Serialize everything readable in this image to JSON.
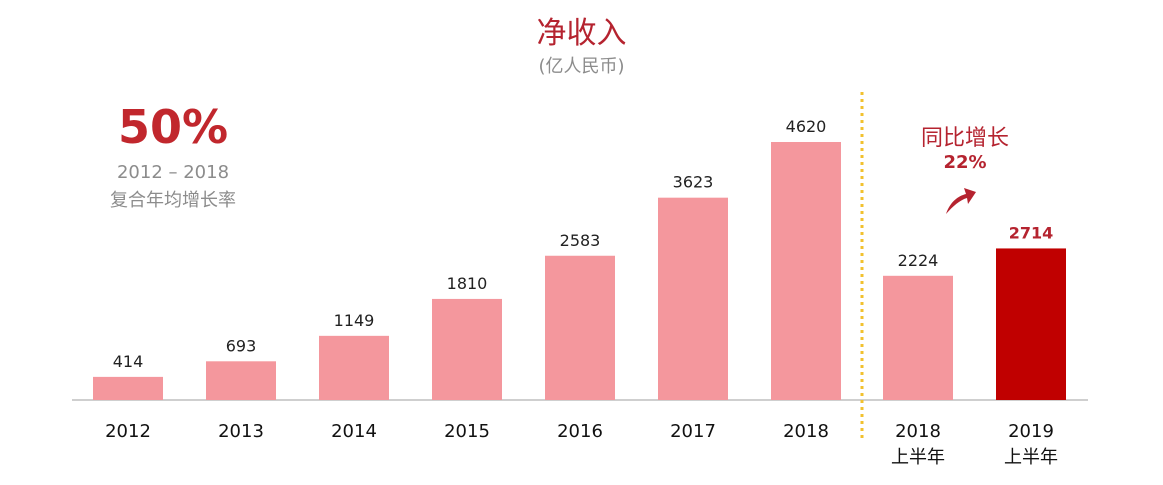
{
  "title": "净收入",
  "subtitle": "(亿人民币)",
  "cagr": {
    "value": "50%",
    "period": "2012 – 2018",
    "label": "复合年均增长率"
  },
  "yoy": {
    "label": "同比增长",
    "value": "22%"
  },
  "colors": {
    "bar": "#f4979d",
    "highlight": "#c00000",
    "title": "#b5232f",
    "divider": "#f2c12e",
    "axis": "#bfbfbf"
  },
  "chart_data": {
    "type": "bar",
    "title": "净收入",
    "subtitle": "(亿人民币)",
    "categories": [
      "2012",
      "2013",
      "2014",
      "2015",
      "2016",
      "2017",
      "2018",
      "2018\n上半年",
      "2019\n上半年"
    ],
    "category_lines": [
      [
        "2012"
      ],
      [
        "2013"
      ],
      [
        "2014"
      ],
      [
        "2015"
      ],
      [
        "2016"
      ],
      [
        "2017"
      ],
      [
        "2018"
      ],
      [
        "2018",
        "上半年"
      ],
      [
        "2019",
        "上半年"
      ]
    ],
    "values": [
      414,
      693,
      1149,
      1810,
      2583,
      3623,
      4620,
      2224,
      2714
    ],
    "highlighted_index": 8,
    "divider_after_index": 6,
    "ylim": [
      0,
      4620
    ],
    "grid": false,
    "legend": "none",
    "xlabel": "",
    "ylabel": ""
  }
}
